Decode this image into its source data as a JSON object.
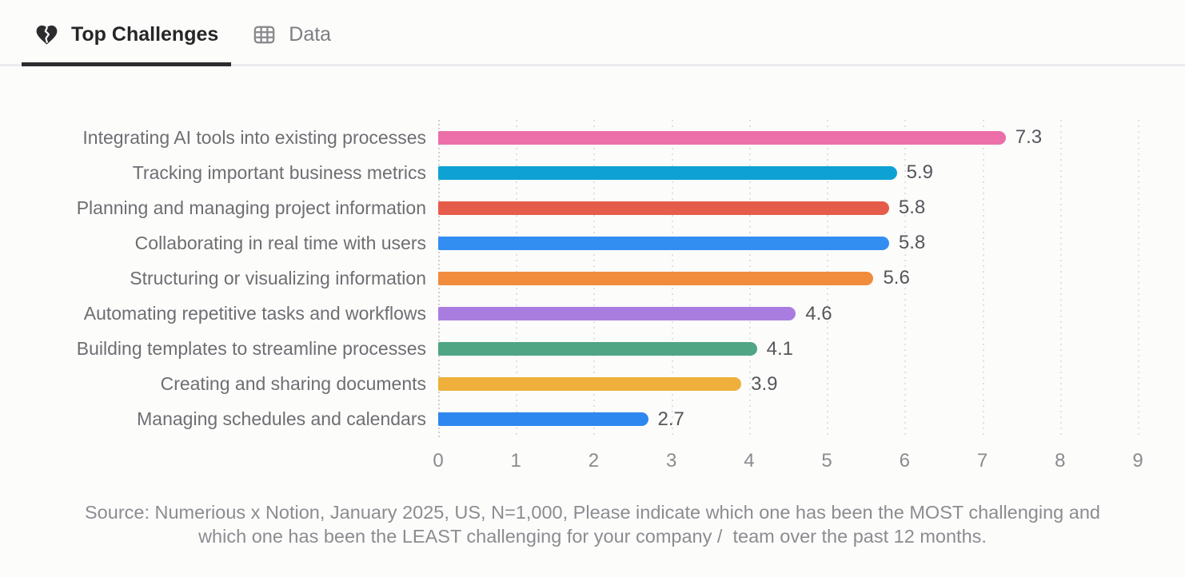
{
  "tabs": [
    {
      "label": "Top Challenges",
      "icon": "broken-heart",
      "active": true
    },
    {
      "label": "Data",
      "icon": "table",
      "active": false
    }
  ],
  "chart_data": {
    "type": "bar",
    "orientation": "horizontal",
    "title": "",
    "xlabel": "",
    "ylabel": "",
    "xlim": [
      0,
      9
    ],
    "x_ticks": [
      0,
      1,
      2,
      3,
      4,
      5,
      6,
      7,
      8,
      9
    ],
    "grid": "vertical-dotted",
    "legend": "none",
    "categories": [
      "Integrating AI tools into existing processes",
      "Tracking important business metrics",
      "Planning and managing project information",
      "Collaborating in real time with users",
      "Structuring or visualizing information",
      "Automating repetitive tasks and workflows",
      "Building templates to streamline processes",
      "Creating and sharing documents",
      "Managing schedules and calendars"
    ],
    "values": [
      7.3,
      5.9,
      5.8,
      5.8,
      5.6,
      4.6,
      4.1,
      3.9,
      2.7
    ],
    "value_labels": [
      "7.3",
      "5.9",
      "5.8",
      "5.8",
      "5.6",
      "4.6",
      "4.1",
      "3.9",
      "2.7"
    ],
    "bar_colors": [
      "#ec6fa9",
      "#0ea2d4",
      "#e65c4b",
      "#338ef2",
      "#f18c3d",
      "#a97de0",
      "#50a584",
      "#efaf3b",
      "#2e87ef"
    ]
  },
  "footer": {
    "source_lines": [
      "Source: Numerious x Notion, January 2025, US, N=1,000, Please indicate which one has been the MOST challenging and",
      "which one has been the LEAST challenging for your company /  team over the past 12 months."
    ]
  },
  "colors": {
    "active_tab_text": "#262628",
    "inactive_tab_text": "#7d7d82",
    "active_underline": "#2c2c2e",
    "category_label": "#6e6e73",
    "value_label": "#56565b",
    "tick_label": "#8b8b90",
    "footer_text": "#8c8c91",
    "gridline": "#e0e0e4"
  }
}
